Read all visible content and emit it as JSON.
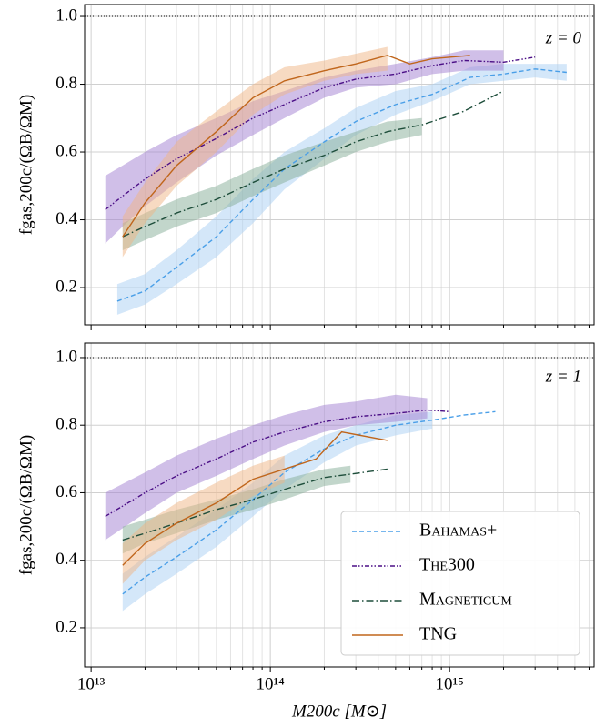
{
  "chart_data": [
    {
      "type": "line",
      "annotation": "z = 0",
      "ylabel": "fgas,200c/(ΩB/ΩM)",
      "xscale": "log",
      "grid": true,
      "hline": 1.0,
      "xlim": [
        9200000000000.0,
        6400000000000000.0
      ],
      "ylim": [
        0.09,
        1.035
      ],
      "xticks": [
        10000000000000.0,
        100000000000000.0,
        1000000000000000.0
      ],
      "xminorticks": [
        20000000000000.0,
        30000000000000.0,
        40000000000000.0,
        50000000000000.0,
        60000000000000.0,
        70000000000000.0,
        80000000000000.0,
        90000000000000.0,
        200000000000000.0,
        300000000000000.0,
        400000000000000.0,
        500000000000000.0,
        600000000000000.0,
        700000000000000.0,
        800000000000000.0,
        900000000000000.0,
        2000000000000000.0,
        3000000000000000.0,
        4000000000000000.0,
        5000000000000000.0,
        6000000000000000.0
      ],
      "yticks": [
        0.2,
        0.4,
        0.6,
        0.8,
        {
          "value": 1,
          "label": "1.0"
        }
      ],
      "series": [
        {
          "name": "Bahamas+",
          "color": "#4a9fe8",
          "band_color": "#a9cff3",
          "linestyle": "dashed",
          "x": [
            14000000000000.0,
            20000000000000.0,
            30000000000000.0,
            50000000000000.0,
            80000000000000.0,
            120000000000000.0,
            200000000000000.0,
            300000000000000.0,
            500000000000000.0,
            800000000000000.0,
            1300000000000000.0,
            2000000000000000.0,
            3000000000000000.0,
            4500000000000000.0
          ],
          "values": [
            0.16,
            0.19,
            0.26,
            0.35,
            0.46,
            0.55,
            0.63,
            0.69,
            0.74,
            0.77,
            0.82,
            0.83,
            0.845,
            0.835
          ],
          "lower": [
            0.12,
            0.15,
            0.21,
            0.29,
            0.39,
            0.49,
            0.58,
            0.65,
            0.71,
            0.75,
            0.8,
            0.81,
            0.82,
            0.81
          ],
          "upper": [
            0.21,
            0.24,
            0.31,
            0.41,
            0.52,
            0.6,
            0.67,
            0.73,
            0.78,
            0.8,
            0.85,
            0.86,
            0.86,
            0.86
          ]
        },
        {
          "name": "The300",
          "color": "#4b0f86",
          "band_color": "#a27fd2",
          "linestyle": "dashdotdot",
          "x": [
            12000000000000.0,
            15000000000000.0,
            20000000000000.0,
            30000000000000.0,
            50000000000000.0,
            80000000000000.0,
            120000000000000.0,
            200000000000000.0,
            300000000000000.0,
            500000000000000.0,
            800000000000000.0,
            1200000000000000.0,
            2000000000000000.0,
            3000000000000000.0
          ],
          "values": [
            0.43,
            0.47,
            0.52,
            0.58,
            0.64,
            0.7,
            0.74,
            0.79,
            0.815,
            0.83,
            0.855,
            0.87,
            0.865,
            0.88
          ],
          "lower": [
            0.33,
            0.38,
            0.44,
            0.51,
            0.59,
            0.65,
            0.7,
            0.76,
            0.79,
            0.8,
            0.83,
            0.84,
            0.84,
            null
          ],
          "upper": [
            0.53,
            0.56,
            0.6,
            0.65,
            0.7,
            0.75,
            0.78,
            0.82,
            0.84,
            0.86,
            0.88,
            0.9,
            0.9,
            null
          ]
        },
        {
          "name": "Magneticum",
          "color": "#1d4d3a",
          "band_color": "#86ad97",
          "linestyle": "dashdot",
          "x": [
            15000000000000.0,
            20000000000000.0,
            30000000000000.0,
            50000000000000.0,
            80000000000000.0,
            120000000000000.0,
            200000000000000.0,
            300000000000000.0,
            450000000000000.0,
            700000000000000.0,
            1200000000000000.0,
            2000000000000000.0
          ],
          "values": [
            0.35,
            0.38,
            0.42,
            0.46,
            0.51,
            0.55,
            0.59,
            0.63,
            0.66,
            0.68,
            0.72,
            0.78
          ],
          "lower": [
            0.31,
            0.34,
            0.38,
            0.42,
            0.47,
            0.51,
            0.56,
            0.6,
            0.63,
            0.65,
            null,
            null
          ],
          "upper": [
            0.39,
            0.42,
            0.46,
            0.5,
            0.55,
            0.59,
            0.63,
            0.66,
            0.69,
            0.7,
            null,
            null
          ]
        },
        {
          "name": "TNG",
          "color": "#c0661c",
          "band_color": "#f0b585",
          "linestyle": "solid",
          "x": [
            15000000000000.0,
            20000000000000.0,
            30000000000000.0,
            50000000000000.0,
            80000000000000.0,
            120000000000000.0,
            200000000000000.0,
            300000000000000.0,
            450000000000000.0,
            600000000000000.0,
            800000000000000.0,
            1300000000000000.0
          ],
          "values": [
            0.35,
            0.45,
            0.56,
            0.66,
            0.76,
            0.81,
            0.84,
            0.86,
            0.885,
            0.86,
            0.875,
            0.885
          ],
          "lower": [
            0.29,
            0.39,
            0.5,
            0.6,
            0.71,
            0.77,
            0.81,
            0.83,
            0.84,
            null,
            null,
            null
          ],
          "upper": [
            0.41,
            0.51,
            0.63,
            0.72,
            0.8,
            0.85,
            0.87,
            0.89,
            0.91,
            null,
            null,
            null
          ]
        }
      ]
    },
    {
      "type": "line",
      "annotation": "z = 1",
      "ylabel": "fgas,200c/(ΩB/ΩM)",
      "xlabel": "M200c [M⊙]",
      "xscale": "log",
      "grid": true,
      "hline": 1.0,
      "legend": "lower right",
      "xlim": [
        9200000000000.0,
        6400000000000000.0
      ],
      "ylim": [
        0.084,
        1.043
      ],
      "xticks": [
        {
          "value": 10000000000000.0,
          "label": "10¹³"
        },
        {
          "value": 100000000000000.0,
          "label": "10¹⁴"
        },
        {
          "value": 1000000000000000.0,
          "label": "10¹⁵"
        }
      ],
      "xminorticks": [
        20000000000000.0,
        30000000000000.0,
        40000000000000.0,
        50000000000000.0,
        60000000000000.0,
        70000000000000.0,
        80000000000000.0,
        90000000000000.0,
        200000000000000.0,
        300000000000000.0,
        400000000000000.0,
        500000000000000.0,
        600000000000000.0,
        700000000000000.0,
        800000000000000.0,
        900000000000000.0,
        2000000000000000.0,
        3000000000000000.0,
        4000000000000000.0,
        5000000000000000.0,
        6000000000000000.0
      ],
      "yticks": [
        0.2,
        0.4,
        0.6,
        0.8,
        {
          "value": 1,
          "label": "1.0"
        }
      ],
      "series": [
        {
          "name": "Bahamas+",
          "color": "#4a9fe8",
          "band_color": "#a9cff3",
          "linestyle": "dashed",
          "x": [
            15000000000000.0,
            20000000000000.0,
            30000000000000.0,
            50000000000000.0,
            80000000000000.0,
            120000000000000.0,
            200000000000000.0,
            300000000000000.0,
            500000000000000.0,
            800000000000000.0,
            1200000000000000.0,
            1800000000000000.0
          ],
          "values": [
            0.3,
            0.35,
            0.41,
            0.49,
            0.58,
            0.66,
            0.73,
            0.77,
            0.8,
            0.815,
            0.83,
            0.84
          ],
          "lower": [
            0.25,
            0.3,
            0.36,
            0.44,
            0.53,
            0.61,
            0.69,
            0.74,
            0.77,
            0.79,
            null,
            null
          ],
          "upper": [
            0.36,
            0.41,
            0.47,
            0.55,
            0.63,
            0.71,
            0.77,
            0.8,
            0.83,
            0.84,
            null,
            null
          ]
        },
        {
          "name": "The300",
          "color": "#4b0f86",
          "band_color": "#a27fd2",
          "linestyle": "dashdotdot",
          "x": [
            12000000000000.0,
            20000000000000.0,
            30000000000000.0,
            50000000000000.0,
            80000000000000.0,
            120000000000000.0,
            200000000000000.0,
            300000000000000.0,
            500000000000000.0,
            750000000000000.0,
            1000000000000000.0
          ],
          "values": [
            0.53,
            0.6,
            0.65,
            0.7,
            0.75,
            0.78,
            0.81,
            0.825,
            0.835,
            0.845,
            0.84
          ],
          "lower": [
            0.46,
            0.54,
            0.6,
            0.65,
            0.7,
            0.74,
            0.78,
            0.8,
            0.81,
            0.82,
            null
          ],
          "upper": [
            0.6,
            0.66,
            0.71,
            0.76,
            0.8,
            0.83,
            0.86,
            0.87,
            0.89,
            0.88,
            null
          ]
        },
        {
          "name": "Magneticum",
          "color": "#1d4d3a",
          "band_color": "#86ad97",
          "linestyle": "dashdot",
          "x": [
            15000000000000.0,
            20000000000000.0,
            30000000000000.0,
            50000000000000.0,
            80000000000000.0,
            120000000000000.0,
            200000000000000.0,
            280000000000000.0,
            450000000000000.0
          ],
          "values": [
            0.46,
            0.48,
            0.51,
            0.55,
            0.58,
            0.61,
            0.645,
            0.655,
            0.67
          ],
          "lower": [
            0.42,
            0.45,
            0.48,
            0.52,
            0.55,
            0.58,
            0.62,
            0.63,
            null
          ],
          "upper": [
            0.5,
            0.52,
            0.55,
            0.58,
            0.61,
            0.64,
            0.67,
            0.68,
            null
          ]
        },
        {
          "name": "TNG",
          "color": "#c0661c",
          "band_color": "#f0b585",
          "linestyle": "solid",
          "x": [
            15000000000000.0,
            20000000000000.0,
            30000000000000.0,
            50000000000000.0,
            80000000000000.0,
            120000000000000.0,
            180000000000000.0,
            250000000000000.0,
            450000000000000.0
          ],
          "values": [
            0.385,
            0.45,
            0.51,
            0.57,
            0.64,
            0.67,
            0.7,
            0.78,
            0.755
          ],
          "lower": [
            0.33,
            0.4,
            0.46,
            0.52,
            0.59,
            0.63,
            null,
            null,
            null
          ],
          "upper": [
            0.45,
            0.51,
            0.57,
            0.63,
            0.68,
            0.71,
            null,
            null,
            null
          ]
        }
      ]
    }
  ]
}
